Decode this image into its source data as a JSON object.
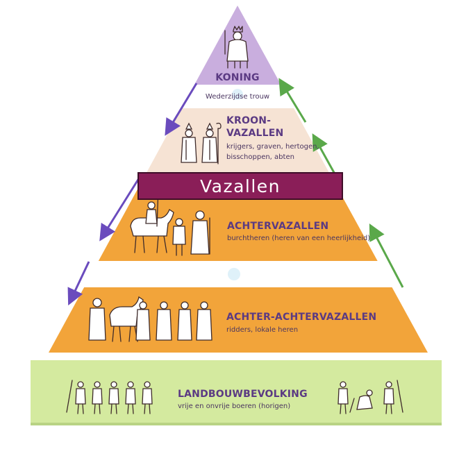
{
  "banner": {
    "label": "Vazallen"
  },
  "tiers": {
    "koning": {
      "title": "KONING",
      "subtitle": "Wederzijdse trouw"
    },
    "kroonvazallen": {
      "title_line1": "KROON-",
      "title_line2": "VAZALLEN",
      "subtitle_line1": "krijgers, graven, hertogen,",
      "subtitle_line2": "bisschoppen, abten"
    },
    "achtervazallen": {
      "title": "ACHTERVAZALLEN",
      "subtitle": "burchtheren (heren van een heerlijkheid)"
    },
    "achter_achtervazallen": {
      "title": "ACHTER-ACHTERVAZALLEN",
      "subtitle": "ridders, lokale heren"
    },
    "landbouwbevolking": {
      "title": "LANDBOUWBEVOLKING",
      "subtitle": "vrije en onvrije boeren (horigen)"
    }
  },
  "colors": {
    "koning": "#c9aede",
    "kroonvazallen": "#f6e3d4",
    "orange": "#f2a43a",
    "landbouw": "#d4ea9f",
    "banner": "#8a1e58",
    "arrow_down": "#6a4bbd",
    "arrow_up": "#5aa84a",
    "title_text": "#5b3a83"
  }
}
